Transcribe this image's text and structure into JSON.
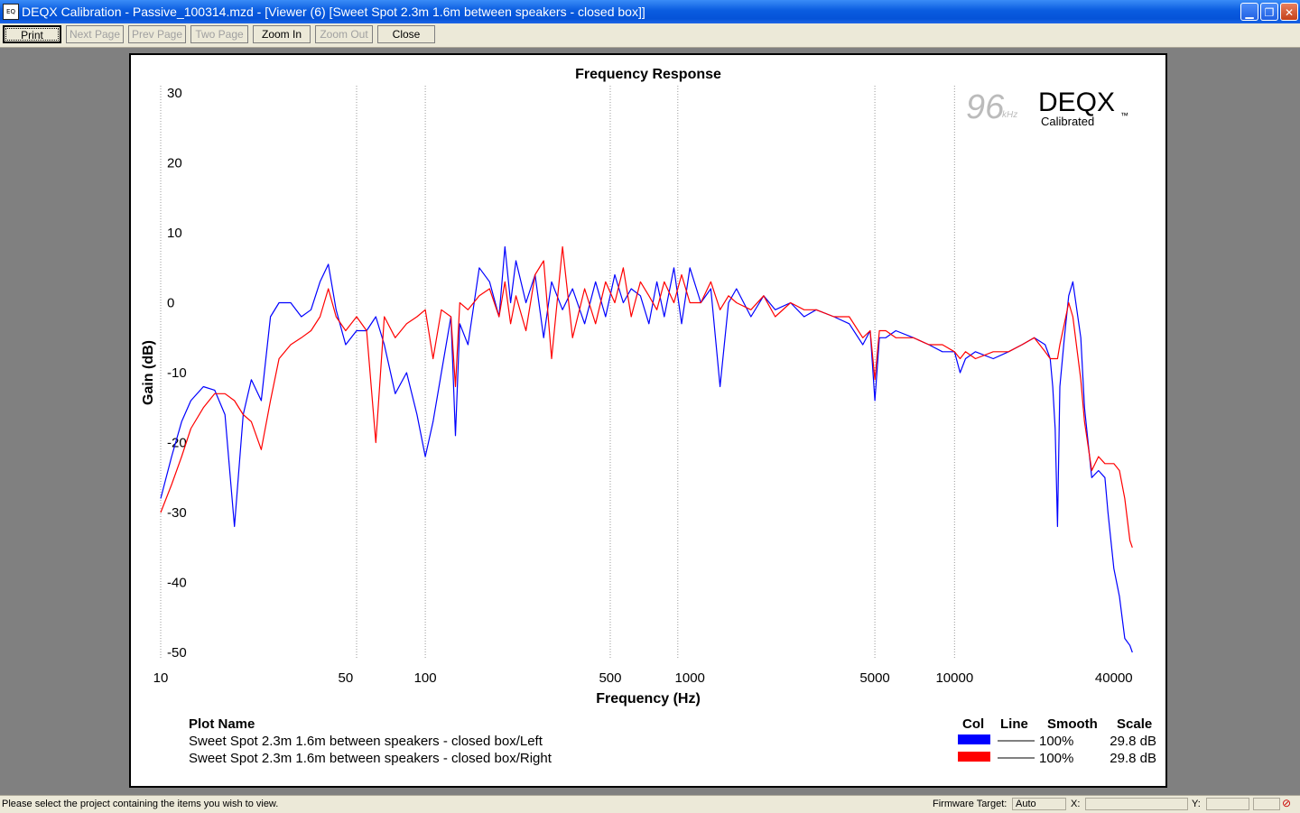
{
  "window": {
    "title": "DEQX Calibration - Passive_100314.mzd - [Viewer (6) [Sweet Spot 2.3m 1.6m between speakers - closed box]]",
    "icon_label": "EQ",
    "minimize_icon": "minimize-icon",
    "restore_icon": "restore-icon",
    "close_icon": "close-icon"
  },
  "toolbar": {
    "print": "Print",
    "next_page": "Next Page",
    "prev_page": "Prev Page",
    "two_page": "Two Page",
    "zoom_in": "Zoom In",
    "zoom_out": "Zoom Out",
    "close": "Close"
  },
  "logo": {
    "rate": "96",
    "rate_unit": "kHz",
    "brand": "DEQX",
    "sub": "Calibrated",
    "tm": "™"
  },
  "legend": {
    "header_name": "Plot Name",
    "header_col": "Col",
    "header_line": "Line",
    "header_smooth": "Smooth",
    "header_scale": "Scale",
    "rows": [
      {
        "name": "Sweet Spot 2.3m 1.6m between speakers - closed box/Left",
        "color": "#0000ff",
        "smooth": "100%",
        "scale": "29.8 dB"
      },
      {
        "name": "Sweet Spot 2.3m 1.6m between speakers - closed box/Right",
        "color": "#ff0000",
        "smooth": "100%",
        "scale": "29.8 dB"
      }
    ]
  },
  "status": {
    "message": "Please select the project containing the items you wish to view.",
    "firmware_label": "Firmware Target:",
    "firmware_value": "Auto",
    "x_label": "X:",
    "y_label": "Y:"
  },
  "chart_data": {
    "type": "line",
    "title": "Frequency Response",
    "xlabel": "Frequency (Hz)",
    "ylabel": "Gain (dB)",
    "x_scale": "log",
    "xlim": [
      10,
      48000
    ],
    "ylim": [
      -50,
      30
    ],
    "x_ticks": [
      10,
      50,
      100,
      500,
      1000,
      5000,
      10000,
      40000
    ],
    "y_ticks": [
      30,
      20,
      10,
      0,
      -10,
      -20,
      -30,
      -40,
      -50
    ],
    "vertical_grid_x": [
      10,
      55,
      100,
      500,
      900,
      5000,
      10000
    ],
    "series": [
      {
        "name": "Sweet Spot 2.3m 1.6m between speakers - closed box/Left",
        "color": "#0000ff",
        "x": [
          10,
          11,
          12,
          13,
          14.5,
          16,
          17.5,
          19,
          20.5,
          22,
          24,
          26,
          28,
          31,
          34,
          37,
          40,
          43,
          46,
          50,
          55,
          60,
          65,
          70,
          77,
          85,
          93,
          100,
          107,
          115,
          125,
          130,
          135,
          145,
          160,
          175,
          190,
          200,
          210,
          220,
          240,
          260,
          280,
          300,
          330,
          360,
          400,
          440,
          480,
          520,
          560,
          600,
          650,
          700,
          750,
          800,
          870,
          930,
          1000,
          1100,
          1200,
          1300,
          1400,
          1500,
          1700,
          1900,
          2100,
          2400,
          2700,
          3000,
          3500,
          4000,
          4500,
          4800,
          5000,
          5200,
          5500,
          6000,
          7000,
          8000,
          9000,
          10000,
          10500,
          11000,
          12000,
          14000,
          16000,
          18000,
          20000,
          22000,
          23000,
          23500,
          24000,
          24500,
          25000,
          26000,
          27000,
          28000,
          30000,
          31000,
          33000,
          35000,
          37000,
          38000,
          40000,
          42000,
          44000,
          46000,
          47000
        ],
        "y": [
          -28,
          -22,
          -17,
          -14,
          -12,
          -12.5,
          -16,
          -32,
          -16,
          -11,
          -14,
          -2,
          0,
          0,
          -2,
          -1,
          3,
          5.5,
          -1,
          -6,
          -4,
          -4,
          -2,
          -6,
          -13,
          -10,
          -16,
          -22,
          -17,
          -10,
          -2,
          -19,
          -3,
          -6,
          5,
          3,
          -2,
          8,
          0,
          6,
          0,
          4,
          -5,
          3,
          -1,
          2,
          -3,
          3,
          -2,
          4,
          0,
          2,
          1,
          -3,
          3,
          -2,
          5,
          -3,
          5,
          0,
          2,
          -12,
          0,
          2,
          -2,
          1,
          -1,
          0,
          -2,
          -1,
          -2,
          -3,
          -6,
          -4,
          -14,
          -5,
          -5,
          -4,
          -5,
          -6,
          -7,
          -7,
          -10,
          -8,
          -7,
          -8,
          -7,
          -6,
          -5,
          -6,
          -8,
          -12,
          -18,
          -32,
          -12,
          -5,
          1,
          3,
          -5,
          -15,
          -25,
          -24,
          -25,
          -30,
          -38,
          -42,
          -48,
          -49,
          -50
        ]
      },
      {
        "name": "Sweet Spot 2.3m 1.6m between speakers - closed box/Right",
        "color": "#ff0000",
        "x": [
          10,
          11,
          12,
          13,
          14.5,
          16,
          17.5,
          19,
          20.5,
          22,
          24,
          26,
          28,
          31,
          34,
          37,
          40,
          43,
          46,
          50,
          55,
          60,
          65,
          70,
          77,
          85,
          93,
          100,
          107,
          115,
          125,
          130,
          135,
          145,
          160,
          175,
          190,
          200,
          210,
          220,
          240,
          260,
          280,
          300,
          330,
          360,
          400,
          440,
          480,
          520,
          560,
          600,
          650,
          700,
          750,
          800,
          870,
          930,
          1000,
          1100,
          1200,
          1300,
          1400,
          1500,
          1700,
          1900,
          2100,
          2400,
          2700,
          3000,
          3500,
          4000,
          4500,
          4800,
          5000,
          5200,
          5500,
          6000,
          7000,
          8000,
          9000,
          10000,
          10500,
          11000,
          12000,
          14000,
          16000,
          18000,
          20000,
          22000,
          23000,
          23500,
          24000,
          24500,
          25000,
          26000,
          27000,
          28000,
          30000,
          31000,
          33000,
          35000,
          37000,
          38000,
          40000,
          42000,
          44000,
          46000,
          47000
        ],
        "y": [
          -30,
          -26,
          -22,
          -18,
          -15,
          -13,
          -13,
          -14,
          -16,
          -17,
          -21,
          -14,
          -8,
          -6,
          -5,
          -4,
          -2,
          2,
          -2,
          -4,
          -2,
          -4,
          -20,
          -2,
          -5,
          -3,
          -2,
          -1,
          -8,
          -1,
          -2,
          -12,
          0,
          -1,
          1,
          2,
          -2,
          3,
          -3,
          1,
          -4,
          4,
          6,
          -8,
          8,
          -5,
          2,
          -3,
          3,
          0,
          5,
          -2,
          3,
          1,
          -1,
          3,
          0,
          4,
          0,
          0,
          3,
          -1,
          1,
          0,
          -1,
          1,
          -2,
          0,
          -1,
          -1,
          -2,
          -2,
          -5,
          -4,
          -11,
          -4,
          -4,
          -5,
          -5,
          -6,
          -6,
          -7,
          -8,
          -7,
          -8,
          -7,
          -7,
          -6,
          -5,
          -7,
          -8,
          -8,
          -8,
          -8,
          -6,
          -3,
          0,
          -2,
          -11,
          -17,
          -24,
          -22,
          -23,
          -23,
          -23,
          -24,
          -28,
          -34,
          -35
        ]
      }
    ]
  }
}
